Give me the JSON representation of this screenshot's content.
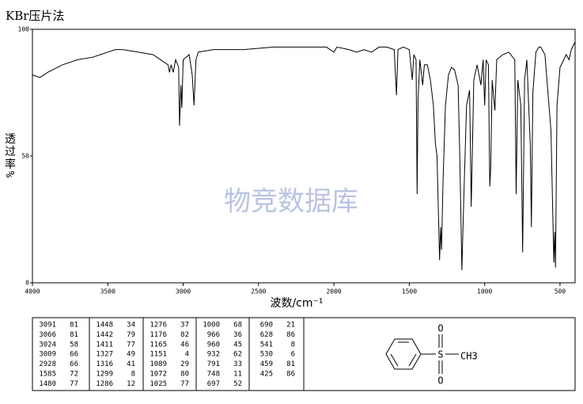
{
  "chart_data": {
    "type": "line",
    "title": "KBr压片法",
    "ylabel": "透过率%",
    "xlabel": "波数/cm⁻¹",
    "watermark": "物竞数据库",
    "color": "#000000",
    "xlim": [
      4000,
      400
    ],
    "xticks": [
      4000,
      3500,
      3000,
      2500,
      2000,
      1500,
      1000,
      500
    ],
    "ylim": [
      0,
      100
    ],
    "yticks": [
      0,
      50,
      100
    ],
    "x": [
      4000,
      3950,
      3900,
      3800,
      3700,
      3600,
      3500,
      3450,
      3400,
      3300,
      3200,
      3150,
      3100,
      3091,
      3080,
      3066,
      3050,
      3030,
      3024,
      3015,
      3009,
      3000,
      2960,
      2940,
      2928,
      2915,
      2900,
      2800,
      2600,
      2400,
      2200,
      2050,
      2000,
      1980,
      1900,
      1850,
      1800,
      1750,
      1700,
      1650,
      1600,
      1585,
      1575,
      1540,
      1500,
      1480,
      1470,
      1455,
      1448,
      1442,
      1430,
      1411,
      1400,
      1380,
      1360,
      1340,
      1327,
      1316,
      1299,
      1292,
      1286,
      1276,
      1260,
      1240,
      1220,
      1200,
      1176,
      1165,
      1151,
      1140,
      1120,
      1100,
      1089,
      1072,
      1050,
      1025,
      1010,
      1000,
      990,
      975,
      966,
      960,
      950,
      932,
      920,
      880,
      840,
      800,
      791,
      780,
      760,
      748,
      735,
      720,
      697,
      690,
      680,
      660,
      640,
      628,
      600,
      560,
      541,
      535,
      530,
      520,
      500,
      459,
      440,
      425,
      400
    ],
    "values": [
      82,
      81,
      83,
      86,
      88,
      89,
      91,
      92,
      92,
      91,
      90,
      88,
      86,
      83,
      86,
      83,
      88,
      85,
      62,
      78,
      69,
      88,
      90,
      82,
      70,
      88,
      91,
      92,
      92,
      93,
      93,
      93,
      91,
      93,
      92,
      91,
      92,
      91,
      93,
      93,
      92,
      74,
      92,
      93,
      92,
      80,
      90,
      88,
      35,
      72,
      88,
      78,
      86,
      86,
      80,
      70,
      55,
      50,
      9,
      22,
      13,
      40,
      70,
      82,
      85,
      84,
      78,
      50,
      5,
      30,
      70,
      76,
      30,
      80,
      86,
      78,
      88,
      70,
      88,
      86,
      38,
      45,
      80,
      68,
      88,
      90,
      91,
      88,
      35,
      80,
      70,
      12,
      80,
      88,
      54,
      22,
      75,
      91,
      93,
      93,
      90,
      60,
      8,
      20,
      6,
      70,
      85,
      90,
      88,
      92,
      95
    ]
  },
  "peak_table": {
    "columns": [
      [
        [
          3091,
          81
        ],
        [
          3066,
          81
        ],
        [
          3024,
          58
        ],
        [
          3009,
          66
        ],
        [
          2928,
          66
        ],
        [
          1585,
          72
        ],
        [
          1480,
          77
        ]
      ],
      [
        [
          1448,
          34
        ],
        [
          1442,
          79
        ],
        [
          1411,
          77
        ],
        [
          1327,
          49
        ],
        [
          1316,
          41
        ],
        [
          1299,
          8
        ],
        [
          1286,
          12
        ]
      ],
      [
        [
          1276,
          37
        ],
        [
          1176,
          82
        ],
        [
          1165,
          46
        ],
        [
          1151,
          4
        ],
        [
          1089,
          29
        ],
        [
          1072,
          80
        ],
        [
          1025,
          77
        ]
      ],
      [
        [
          1000,
          68
        ],
        [
          966,
          36
        ],
        [
          960,
          45
        ],
        [
          932,
          62
        ],
        [
          791,
          33
        ],
        [
          748,
          11
        ],
        [
          697,
          52
        ]
      ],
      [
        [
          690,
          21
        ],
        [
          628,
          86
        ],
        [
          541,
          8
        ],
        [
          530,
          6
        ],
        [
          459,
          81
        ],
        [
          425,
          86
        ]
      ]
    ]
  },
  "structure": {
    "atoms": [
      "S",
      "O",
      "O",
      "CH3"
    ]
  }
}
